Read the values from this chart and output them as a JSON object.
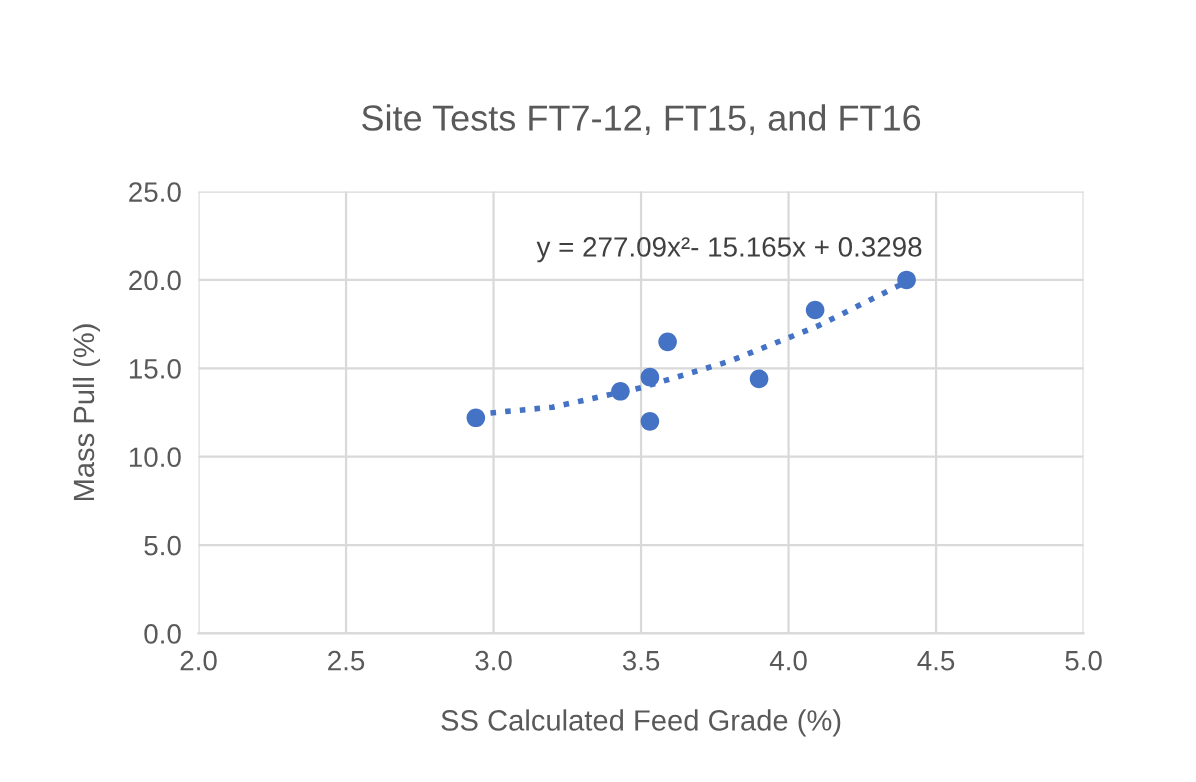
{
  "chart_data": {
    "type": "scatter",
    "title": "Site Tests FT7-12, FT15, and FT16",
    "xlabel": "SS Calculated Feed Grade (%)",
    "ylabel": "Mass Pull (%)",
    "series": [
      {
        "color": "#4472c4",
        "marker": "circle",
        "x": [
          2.94,
          3.43,
          3.53,
          3.53,
          3.59,
          3.9,
          4.09,
          4.4
        ],
        "values": [
          12.2,
          13.7,
          14.5,
          12.0,
          16.5,
          14.4,
          18.3,
          20.0
        ]
      },
      {
        "type": "line",
        "color": "#4472c4",
        "marker": "none",
        "line_style": "dotted",
        "x": [
          2.94,
          3.2,
          3.5,
          3.8,
          4.1,
          4.4
        ],
        "values": [
          12.4,
          12.8,
          13.9,
          15.4,
          17.4,
          19.9
        ]
      }
    ],
    "annotations": [
      "y = 277.09x²- 15.165x + 0.3298"
    ],
    "xlim": [
      2.0,
      5.0
    ],
    "ylim": [
      0.0,
      25.0
    ],
    "xticks": [
      {
        "value": 2.0,
        "label": "2.0"
      },
      {
        "value": 2.5,
        "label": "2.5"
      },
      {
        "value": 3.0,
        "label": "3.0"
      },
      {
        "value": 3.5,
        "label": "3.5"
      },
      {
        "value": 4.0,
        "label": "4.0"
      },
      {
        "value": 4.5,
        "label": "4.5"
      },
      {
        "value": 5.0,
        "label": "5.0"
      }
    ],
    "yticks": [
      {
        "value": 0,
        "label": "0.0"
      },
      {
        "value": 5,
        "label": "5.0"
      },
      {
        "value": 10,
        "label": "10.0"
      },
      {
        "value": 15,
        "label": "15.0"
      },
      {
        "value": 20,
        "label": "20.0"
      },
      {
        "value": 25,
        "label": "25.0"
      }
    ],
    "grid": true
  }
}
